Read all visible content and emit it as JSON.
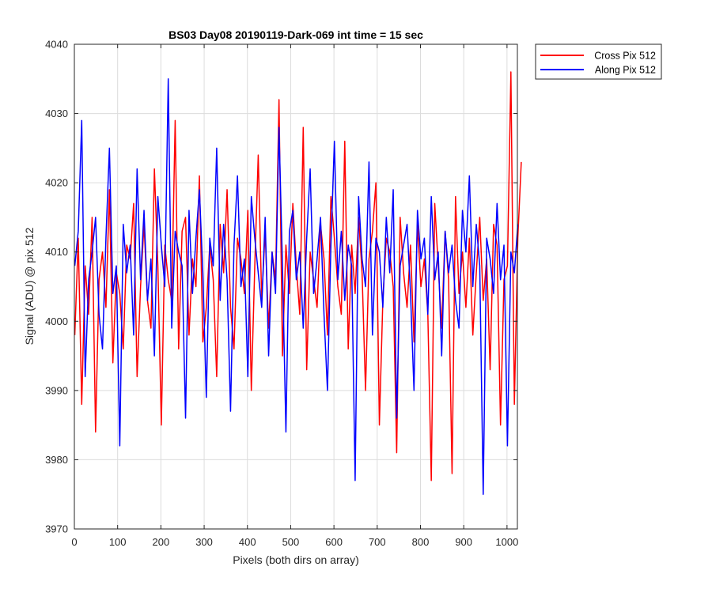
{
  "chart_data": {
    "type": "line",
    "title": "BS03 Day08 20190119-Dark-069 int time = 15 sec",
    "xlabel": "Pixels (both dirs on array)",
    "ylabel": "Signal (ADU) @ pix 512",
    "xlim": [
      0,
      1024
    ],
    "ylim": [
      3970,
      4040
    ],
    "xticks": [
      0,
      100,
      200,
      300,
      400,
      500,
      600,
      700,
      800,
      900,
      1000
    ],
    "yticks": [
      3970,
      3980,
      3990,
      4000,
      4010,
      4020,
      4030,
      4040
    ],
    "grid": true,
    "legend_position": "outside-top-right",
    "x_start": 1,
    "x_step": 8,
    "series": [
      {
        "name": "Cross Pix 512",
        "color": "#ff0000",
        "values": [
          3998,
          4012,
          3988,
          4008,
          4001,
          4015,
          3984,
          4006,
          4010,
          4002,
          4019,
          3994,
          4007,
          4004,
          3996,
          4011,
          4009,
          4017,
          3992,
          4005,
          4014,
          4003,
          3999,
          4022,
          4008,
          3985,
          4011,
          4006,
          4003,
          4029,
          3996,
          4013,
          4015,
          3998,
          4009,
          4005,
          4021,
          3997,
          4002,
          4011,
          4006,
          3992,
          4014,
          4007,
          4019,
          4002,
          3996,
          4012,
          4009,
          4004,
          4016,
          3990,
          4008,
          4024,
          4003,
          4013,
          3999,
          4010,
          4006,
          4032,
          3995,
          4011,
          4004,
          4017,
          4008,
          4001,
          4028,
          3993,
          4010,
          4006,
          4002,
          4014,
          4009,
          3998,
          4018,
          4012,
          4005,
          4001,
          4026,
          3996,
          4011,
          4004,
          4015,
          4007,
          3990,
          4009,
          4013,
          4020,
          3985,
          4003,
          4012,
          4010,
          4005,
          3981,
          4015,
          4007,
          4002,
          4011,
          3997,
          4014,
          4005,
          4009,
          4001,
          3977,
          4017,
          4008,
          3999,
          4013,
          4006,
          3978,
          4018,
          4004,
          4010,
          4002,
          4012,
          3998,
          4007,
          4015,
          4003,
          4009,
          3993,
          4014,
          4011,
          3985,
          4006,
          4008,
          4036,
          3988,
          4012,
          4023
        ]
      },
      {
        "name": "Along Pix 512",
        "color": "#0000ff",
        "values": [
          4008,
          4013,
          4029,
          3992,
          4006,
          4010,
          4015,
          4001,
          3996,
          4012,
          4025,
          4004,
          4008,
          3982,
          4014,
          4007,
          4011,
          3998,
          4022,
          4006,
          4016,
          4003,
          4009,
          3995,
          4018,
          4011,
          4005,
          4035,
          3999,
          4013,
          4010,
          4008,
          3986,
          4016,
          4004,
          4012,
          4019,
          4007,
          3989,
          4012,
          4008,
          4025,
          4003,
          4014,
          4006,
          3987,
          4011,
          4021,
          4005,
          4009,
          3992,
          4018,
          4012,
          4007,
          4002,
          4015,
          3995,
          4010,
          4004,
          4028,
          4008,
          3984,
          4013,
          4016,
          4006,
          4010,
          3999,
          4012,
          4022,
          4004,
          4009,
          4015,
          4001,
          3990,
          4011,
          4026,
          4006,
          4013,
          4003,
          4011,
          4008,
          3977,
          4018,
          4009,
          4005,
          4023,
          3998,
          4012,
          4010,
          4002,
          4015,
          4007,
          4019,
          3986,
          4008,
          4011,
          4014,
          4004,
          3990,
          4016,
          4009,
          4012,
          4001,
          4018,
          4006,
          4010,
          3995,
          4013,
          4007,
          4011,
          4003,
          3999,
          4016,
          4010,
          4021,
          4005,
          4014,
          4008,
          3975,
          4012,
          4009,
          4004,
          4017,
          4006,
          4011,
          3982,
          4010,
          4007,
          4014
        ]
      }
    ]
  }
}
